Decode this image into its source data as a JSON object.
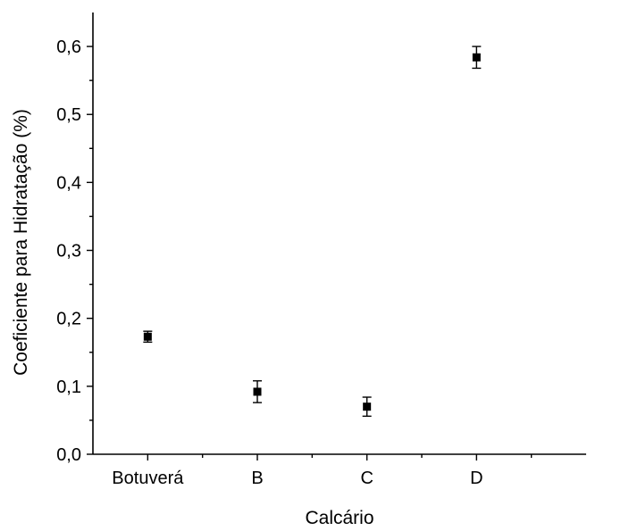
{
  "chart_data": {
    "type": "scatter",
    "title": "",
    "xlabel": "Calcário",
    "ylabel": "Coeficiente para Hidratação (%)",
    "categories": [
      "Botuverá",
      "B",
      "C",
      "D"
    ],
    "values": [
      0.173,
      0.092,
      0.07,
      0.584
    ],
    "errors": [
      0.008,
      0.016,
      0.014,
      0.016
    ],
    "ylim": [
      0.0,
      0.65
    ],
    "yticks": [
      0.0,
      0.1,
      0.2,
      0.3,
      0.4,
      0.5,
      0.6
    ],
    "ytick_labels": [
      "0,0",
      "0,1",
      "0,2",
      "0,3",
      "0,4",
      "0,5",
      "0,6"
    ],
    "grid": false,
    "marker": "square",
    "color": "#000000"
  }
}
